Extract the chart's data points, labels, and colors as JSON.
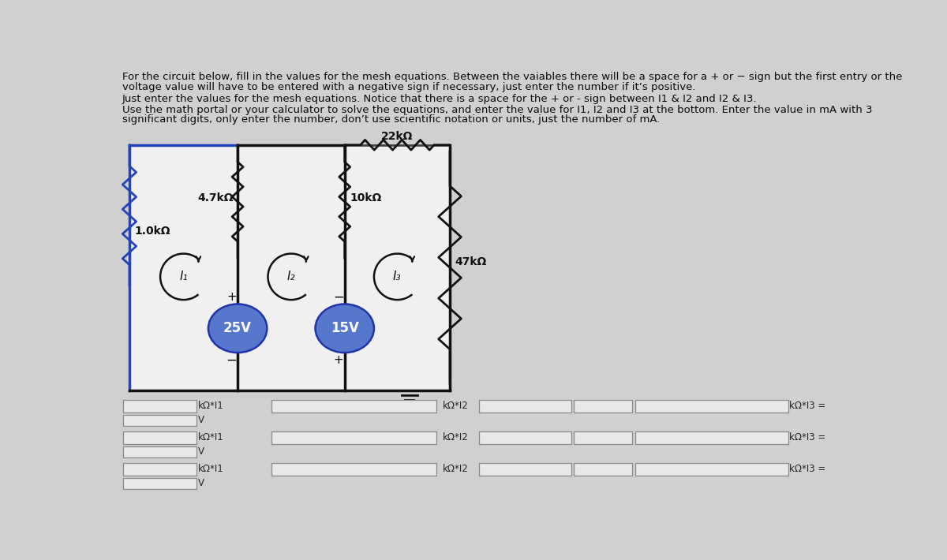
{
  "bg_color": "#d0d0d0",
  "circuit_bg": "#f0f0f0",
  "header": [
    "For the circuit below, fill in the values for the mesh equations. Between the vaiables there will be a space for a + or − sign but the first entry or the",
    "voltage value will have to be entered with a negative sign if necessary, just enter the number if it’s positive.",
    "Just enter the values for the mesh equations. Notice that there is a space for the + or - sign between I1 & I2 and I2 & I3.",
    "Use the math portal or your calculator to solve the equations, and enter the value for I1, I2 and I3 at the bottom. Enter the value in mA with 3",
    "significant digits, only enter the number, don’t use scientific notation or units, just the number of mA."
  ],
  "res_22": "22kΩ",
  "res_47": "4.7kΩ",
  "res_10": "10kΩ",
  "res_1": "1.0kΩ",
  "res_47k": "47kΩ",
  "v1": "25V",
  "v2": "15V",
  "i1": "I₁",
  "i2": "I₂",
  "i3": "I₃",
  "form_i1": "kΩ*I1",
  "form_i2": "kΩ*I2",
  "form_i3": "kΩ*I3 =",
  "form_v": "V",
  "wire_blue": "#2244bb",
  "wire_black": "#111111",
  "res_color": "#111111",
  "src_fill": "#5577cc",
  "src_edge": "#2233aa",
  "text_dark": "#0a0a0a",
  "box_fill": "#e8e8e8",
  "box_edge": "#888888"
}
